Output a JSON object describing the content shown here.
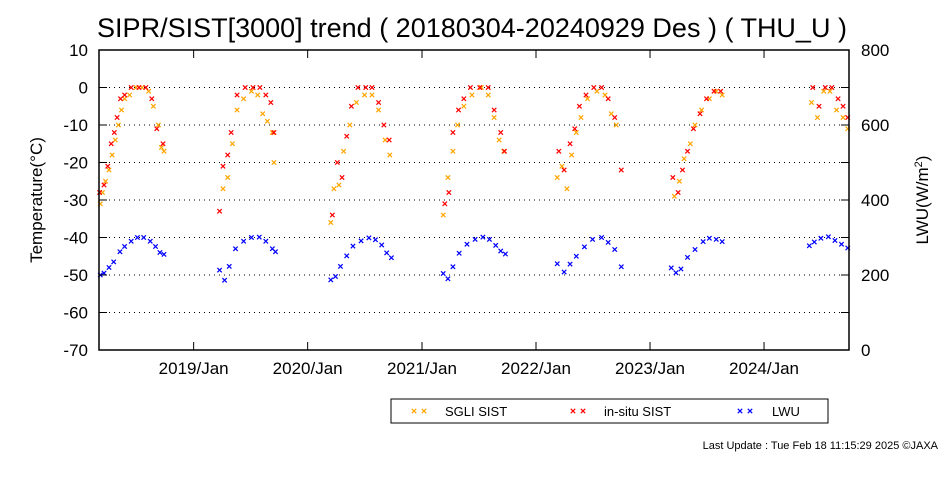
{
  "chart_data": {
    "type": "scatter",
    "title": "SIPR/SIST[3000] trend ( 20180304-20240929 Des ) ( THU_U )",
    "ylabel": "Temperature(°C)",
    "y2label_main": "LWU(W/m",
    "y2label_sup": "2",
    "y2label_end": ")",
    "xlim": [
      "2018-03-04",
      "2024-09-29"
    ],
    "ylim": [
      -70,
      10
    ],
    "y2lim": [
      0,
      800
    ],
    "y_ticks": [
      "10",
      "0",
      "-10",
      "-20",
      "-30",
      "-40",
      "-50",
      "-60",
      "-70"
    ],
    "y2_ticks": [
      "800",
      "600",
      "400",
      "200",
      "0"
    ],
    "x_ticks": [
      {
        "date": "2019-01-01",
        "label": "2019/Jan"
      },
      {
        "date": "2020-01-01",
        "label": "2020/Jan"
      },
      {
        "date": "2021-01-01",
        "label": "2021/Jan"
      },
      {
        "date": "2022-01-01",
        "label": "2022/Jan"
      },
      {
        "date": "2023-01-01",
        "label": "2023/Jan"
      },
      {
        "date": "2024-01-01",
        "label": "2024/Jan"
      }
    ],
    "gridlines": "dotted horizontal at y = 0, -10, -20, -30, -40, -50, -60",
    "legend_placement": "bottom-center",
    "series": [
      {
        "name": "SGLI SIST",
        "axis": "left",
        "color": "#ffa500",
        "points": [
          [
            "2018-03-08",
            -31
          ],
          [
            "2018-03-15",
            -28
          ],
          [
            "2018-03-25",
            -25
          ],
          [
            "2018-04-05",
            -22
          ],
          [
            "2018-04-15",
            -18
          ],
          [
            "2018-04-25",
            -14
          ],
          [
            "2018-05-05",
            -10
          ],
          [
            "2018-05-15",
            -6
          ],
          [
            "2018-05-25",
            -3
          ],
          [
            "2018-06-10",
            -2
          ],
          [
            "2018-07-01",
            0
          ],
          [
            "2018-07-20",
            0
          ],
          [
            "2018-08-10",
            -1
          ],
          [
            "2018-08-25",
            -5
          ],
          [
            "2018-09-10",
            -10
          ],
          [
            "2018-09-20",
            -16
          ],
          [
            "2018-09-28",
            -17
          ],
          [
            "2019-04-05",
            -27
          ],
          [
            "2019-04-20",
            -24
          ],
          [
            "2019-05-05",
            -15
          ],
          [
            "2019-05-20",
            -6
          ],
          [
            "2019-06-10",
            -3
          ],
          [
            "2019-07-05",
            -1
          ],
          [
            "2019-07-25",
            -2
          ],
          [
            "2019-08-10",
            -7
          ],
          [
            "2019-08-25",
            -9
          ],
          [
            "2019-09-10",
            -12
          ],
          [
            "2019-09-15",
            -20
          ],
          [
            "2020-03-15",
            -36
          ],
          [
            "2020-03-25",
            -27
          ],
          [
            "2020-04-10",
            -26
          ],
          [
            "2020-04-25",
            -17
          ],
          [
            "2020-05-15",
            -10
          ],
          [
            "2020-06-05",
            -4
          ],
          [
            "2020-07-01",
            -2
          ],
          [
            "2020-07-25",
            -2
          ],
          [
            "2020-08-15",
            -6
          ],
          [
            "2020-09-05",
            -14
          ],
          [
            "2020-09-20",
            -18
          ],
          [
            "2021-03-10",
            -34
          ],
          [
            "2021-03-25",
            -24
          ],
          [
            "2021-04-10",
            -17
          ],
          [
            "2021-04-25",
            -10
          ],
          [
            "2021-05-15",
            -5
          ],
          [
            "2021-06-10",
            -2
          ],
          [
            "2021-07-10",
            0
          ],
          [
            "2021-08-01",
            -2
          ],
          [
            "2021-08-20",
            -8
          ],
          [
            "2021-09-05",
            -14
          ],
          [
            "2021-09-20",
            -17
          ],
          [
            "2022-03-10",
            -24
          ],
          [
            "2022-03-25",
            -21
          ],
          [
            "2022-04-10",
            -27
          ],
          [
            "2022-04-25",
            -18
          ],
          [
            "2022-05-10",
            -12
          ],
          [
            "2022-05-25",
            -8
          ],
          [
            "2022-06-15",
            -3
          ],
          [
            "2022-07-15",
            -1
          ],
          [
            "2022-08-10",
            -2
          ],
          [
            "2022-08-30",
            -7
          ],
          [
            "2022-09-15",
            -10
          ],
          [
            "2023-03-20",
            -29
          ],
          [
            "2023-04-05",
            -25
          ],
          [
            "2023-04-20",
            -19
          ],
          [
            "2023-05-10",
            -15
          ],
          [
            "2023-05-25",
            -10
          ],
          [
            "2023-06-15",
            -6
          ],
          [
            "2023-07-10",
            -3
          ],
          [
            "2023-08-01",
            -1
          ],
          [
            "2023-08-20",
            -2
          ],
          [
            "2024-06-01",
            -4
          ],
          [
            "2024-06-20",
            -8
          ],
          [
            "2024-07-10",
            -1
          ],
          [
            "2024-07-30",
            -1
          ],
          [
            "2024-08-20",
            -6
          ],
          [
            "2024-09-10",
            -8
          ],
          [
            "2024-09-25",
            -11
          ]
        ]
      },
      {
        "name": "in-situ SIST",
        "axis": "left",
        "color": "#ff0000",
        "points": [
          [
            "2018-03-06",
            -28
          ],
          [
            "2018-03-20",
            -26
          ],
          [
            "2018-04-01",
            -21
          ],
          [
            "2018-04-12",
            -15
          ],
          [
            "2018-04-22",
            -12
          ],
          [
            "2018-05-01",
            -8
          ],
          [
            "2018-05-12",
            -3
          ],
          [
            "2018-05-25",
            -2
          ],
          [
            "2018-06-15",
            0
          ],
          [
            "2018-07-10",
            0
          ],
          [
            "2018-08-01",
            0
          ],
          [
            "2018-08-20",
            -3
          ],
          [
            "2018-09-05",
            -11
          ],
          [
            "2018-09-25",
            -15
          ],
          [
            "2019-03-25",
            -33
          ],
          [
            "2019-04-05",
            -21
          ],
          [
            "2019-04-20",
            -18
          ],
          [
            "2019-05-01",
            -12
          ],
          [
            "2019-05-20",
            -2
          ],
          [
            "2019-06-15",
            0
          ],
          [
            "2019-07-10",
            0
          ],
          [
            "2019-08-01",
            0
          ],
          [
            "2019-08-20",
            -2
          ],
          [
            "2019-09-05",
            -4
          ],
          [
            "2019-09-15",
            -12
          ],
          [
            "2020-03-20",
            -34
          ],
          [
            "2020-04-05",
            -20
          ],
          [
            "2020-04-20",
            -24
          ],
          [
            "2020-05-05",
            -13
          ],
          [
            "2020-05-20",
            -5
          ],
          [
            "2020-06-10",
            0
          ],
          [
            "2020-07-05",
            0
          ],
          [
            "2020-07-25",
            0
          ],
          [
            "2020-08-15",
            -4
          ],
          [
            "2020-09-01",
            -10
          ],
          [
            "2020-09-18",
            -14
          ],
          [
            "2021-03-15",
            -31
          ],
          [
            "2021-03-28",
            -28
          ],
          [
            "2021-04-10",
            -12
          ],
          [
            "2021-04-28",
            -6
          ],
          [
            "2021-05-15",
            -3
          ],
          [
            "2021-06-05",
            0
          ],
          [
            "2021-07-05",
            0
          ],
          [
            "2021-08-01",
            0
          ],
          [
            "2021-08-20",
            -6
          ],
          [
            "2021-09-10",
            -12
          ],
          [
            "2021-09-22",
            -17
          ],
          [
            "2022-03-15",
            -17
          ],
          [
            "2022-04-01",
            -22
          ],
          [
            "2022-04-20",
            -15
          ],
          [
            "2022-05-05",
            -11
          ],
          [
            "2022-05-20",
            -5
          ],
          [
            "2022-06-10",
            -2
          ],
          [
            "2022-07-05",
            0
          ],
          [
            "2022-07-30",
            0
          ],
          [
            "2022-08-20",
            -3
          ],
          [
            "2022-09-10",
            -8
          ],
          [
            "2022-10-01",
            -22
          ],
          [
            "2023-03-15",
            -24
          ],
          [
            "2023-04-01",
            -28
          ],
          [
            "2023-04-15",
            -22
          ],
          [
            "2023-05-01",
            -17
          ],
          [
            "2023-05-20",
            -11
          ],
          [
            "2023-06-10",
            -7
          ],
          [
            "2023-07-01",
            -3
          ],
          [
            "2023-07-25",
            -1
          ],
          [
            "2023-08-15",
            -1
          ],
          [
            "2024-06-05",
            0
          ],
          [
            "2024-06-25",
            -5
          ],
          [
            "2024-07-15",
            0
          ],
          [
            "2024-08-05",
            0
          ],
          [
            "2024-08-25",
            -3
          ],
          [
            "2024-09-10",
            -5
          ],
          [
            "2024-09-25",
            -8
          ]
        ]
      },
      {
        "name": "LWU",
        "axis": "right",
        "color": "#0000ff",
        "points": [
          [
            "2018-03-08",
            200
          ],
          [
            "2018-03-20",
            205
          ],
          [
            "2018-04-05",
            220
          ],
          [
            "2018-04-20",
            235
          ],
          [
            "2018-05-10",
            262
          ],
          [
            "2018-05-25",
            276
          ],
          [
            "2018-06-15",
            290
          ],
          [
            "2018-07-05",
            300
          ],
          [
            "2018-07-25",
            300
          ],
          [
            "2018-08-15",
            290
          ],
          [
            "2018-09-01",
            276
          ],
          [
            "2018-09-15",
            260
          ],
          [
            "2018-09-28",
            255
          ],
          [
            "2019-03-25",
            213
          ],
          [
            "2019-04-10",
            186
          ],
          [
            "2019-04-25",
            223
          ],
          [
            "2019-05-15",
            270
          ],
          [
            "2019-06-10",
            290
          ],
          [
            "2019-07-05",
            300
          ],
          [
            "2019-07-30",
            301
          ],
          [
            "2019-08-20",
            290
          ],
          [
            "2019-09-10",
            270
          ],
          [
            "2019-09-20",
            262
          ],
          [
            "2020-03-15",
            187
          ],
          [
            "2020-03-30",
            196
          ],
          [
            "2020-04-15",
            223
          ],
          [
            "2020-05-05",
            251
          ],
          [
            "2020-05-25",
            277
          ],
          [
            "2020-06-20",
            291
          ],
          [
            "2020-07-15",
            299
          ],
          [
            "2020-08-05",
            294
          ],
          [
            "2020-08-25",
            280
          ],
          [
            "2020-09-10",
            259
          ],
          [
            "2020-09-25",
            246
          ],
          [
            "2021-03-10",
            204
          ],
          [
            "2021-03-25",
            190
          ],
          [
            "2021-04-10",
            222
          ],
          [
            "2021-04-30",
            258
          ],
          [
            "2021-05-25",
            282
          ],
          [
            "2021-06-20",
            295
          ],
          [
            "2021-07-15",
            301
          ],
          [
            "2021-08-05",
            295
          ],
          [
            "2021-08-25",
            279
          ],
          [
            "2021-09-10",
            264
          ],
          [
            "2021-09-25",
            256
          ],
          [
            "2022-03-10",
            230
          ],
          [
            "2022-04-01",
            208
          ],
          [
            "2022-04-20",
            229
          ],
          [
            "2022-05-10",
            250
          ],
          [
            "2022-06-05",
            275
          ],
          [
            "2022-07-01",
            295
          ],
          [
            "2022-07-30",
            300
          ],
          [
            "2022-08-20",
            287
          ],
          [
            "2022-09-10",
            268
          ],
          [
            "2022-10-01",
            222
          ],
          [
            "2023-03-10",
            219
          ],
          [
            "2023-03-25",
            206
          ],
          [
            "2023-04-10",
            216
          ],
          [
            "2023-05-01",
            247
          ],
          [
            "2023-05-25",
            268
          ],
          [
            "2023-06-20",
            289
          ],
          [
            "2023-07-10",
            298
          ],
          [
            "2023-08-01",
            295
          ],
          [
            "2023-08-20",
            289
          ],
          [
            "2024-05-25",
            278
          ],
          [
            "2024-06-10",
            288
          ],
          [
            "2024-07-01",
            298
          ],
          [
            "2024-07-25",
            302
          ],
          [
            "2024-08-15",
            292
          ],
          [
            "2024-09-05",
            282
          ],
          [
            "2024-09-25",
            272
          ]
        ]
      }
    ],
    "footer": "Last Update : Tue Feb 18 11:15:29 2025  ©JAXA"
  }
}
